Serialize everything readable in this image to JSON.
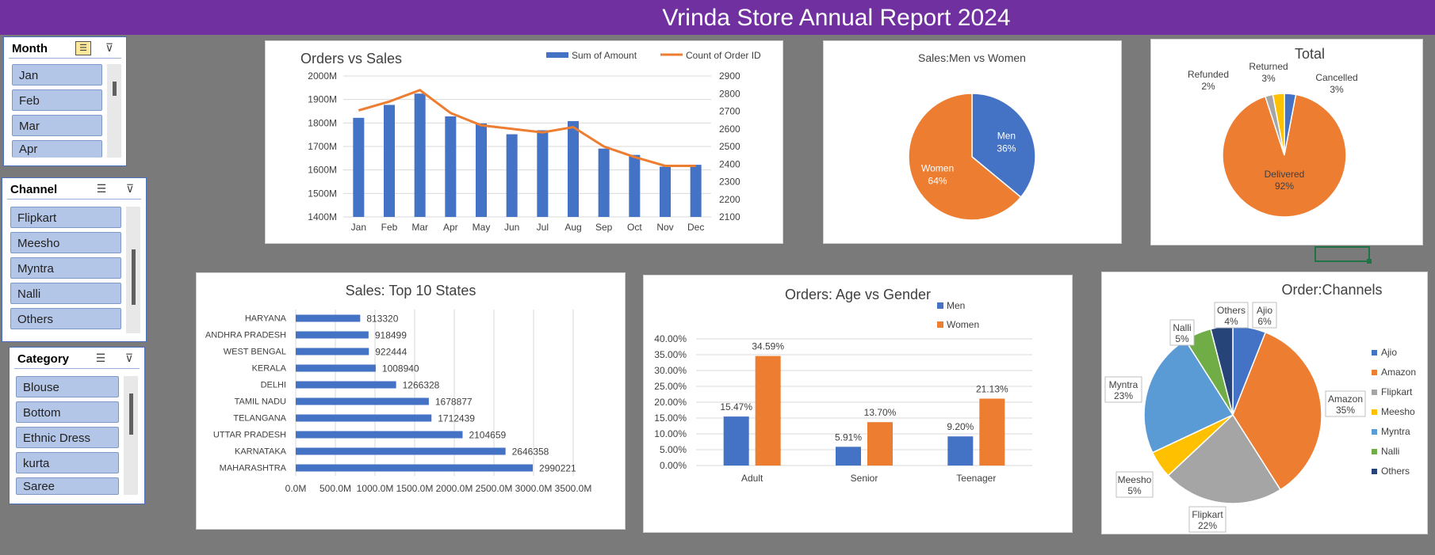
{
  "header": {
    "title": "Vrinda Store Annual Report 2024",
    "bg": "#7030a0"
  },
  "colors": {
    "blue": "#4472c4",
    "orange": "#ed7d31",
    "gray": "#a5a5a5",
    "yellow": "#ffc000",
    "lightblue": "#5b9bd5",
    "green": "#70ad47",
    "navy": "#264478"
  },
  "slicers": {
    "month": {
      "title": "Month",
      "items": [
        "Jan",
        "Feb",
        "Mar",
        "Apr"
      ]
    },
    "channel": {
      "title": "Channel",
      "items": [
        "Flipkart",
        "Meesho",
        "Myntra",
        "Nalli",
        "Others"
      ]
    },
    "category": {
      "title": "Category",
      "items": [
        "Blouse",
        "Bottom",
        "Ethnic Dress",
        "kurta",
        "Saree"
      ]
    }
  },
  "chart_data": [
    {
      "id": "orders_vs_sales",
      "type": "bar",
      "title": "Orders vs Sales",
      "categories": [
        "Jan",
        "Feb",
        "Mar",
        "Apr",
        "May",
        "Jun",
        "Jul",
        "Aug",
        "Sep",
        "Oct",
        "Nov",
        "Dec"
      ],
      "series": [
        {
          "name": "Sum of Amount",
          "type": "bar",
          "axis": "left",
          "values": [
            1822,
            1877,
            1925,
            1828,
            1798,
            1752,
            1769,
            1808,
            1691,
            1664,
            1614,
            1622
          ]
        },
        {
          "name": "Count of Order ID",
          "type": "line",
          "axis": "right",
          "values": [
            2705,
            2755,
            2820,
            2690,
            2620,
            2600,
            2580,
            2610,
            2500,
            2440,
            2390,
            2390
          ]
        }
      ],
      "y_left": {
        "ticks": [
          "1400M",
          "1500M",
          "1600M",
          "1700M",
          "1800M",
          "1900M",
          "2000M"
        ],
        "lim": [
          1400,
          2000
        ]
      },
      "y_right": {
        "ticks": [
          "2100",
          "2200",
          "2300",
          "2400",
          "2500",
          "2600",
          "2700",
          "2800",
          "2900"
        ],
        "lim": [
          2100,
          2900
        ]
      },
      "legend": "top-right"
    },
    {
      "id": "men_vs_women",
      "type": "pie",
      "title": "Sales:Men vs Women",
      "slices": [
        {
          "label": "Men",
          "pct": "36%",
          "value": 36,
          "color": "#4472c4"
        },
        {
          "label": "Women",
          "pct": "64%",
          "value": 64,
          "color": "#ed7d31"
        }
      ]
    },
    {
      "id": "total",
      "type": "pie",
      "title": "Total",
      "slices": [
        {
          "label": "Cancelled",
          "pct": "3%",
          "value": 3,
          "color": "#4472c4"
        },
        {
          "label": "Delivered",
          "pct": "92%",
          "value": 92,
          "color": "#ed7d31"
        },
        {
          "label": "Refunded",
          "pct": "2%",
          "value": 2,
          "color": "#a5a5a5"
        },
        {
          "label": "Returned",
          "pct": "3%",
          "value": 3,
          "color": "#ffc000"
        }
      ]
    },
    {
      "id": "top_states",
      "type": "bar",
      "orientation": "horizontal",
      "title": "Sales: Top 10 States",
      "categories": [
        "HARYANA",
        "ANDHRA PRADESH",
        "WEST BENGAL",
        "KERALA",
        "DELHI",
        "TAMIL NADU",
        "TELANGANA",
        "UTTAR PRADESH",
        "KARNATAKA",
        "MAHARASHTRA"
      ],
      "values": [
        813320,
        918499,
        922444,
        1008940,
        1266328,
        1678877,
        1712439,
        2104659,
        2646358,
        2990221
      ],
      "x_ticks": [
        "0.0M",
        "500.0M",
        "1000.0M",
        "1500.0M",
        "2000.0M",
        "2500.0M",
        "3000.0M",
        "3500.0M"
      ],
      "xlim": [
        0,
        3500000
      ]
    },
    {
      "id": "age_vs_gender",
      "type": "bar",
      "title": "Orders: Age vs Gender",
      "categories": [
        "Adult",
        "Senior",
        "Teenager"
      ],
      "series": [
        {
          "name": "Men",
          "values": [
            15.47,
            5.91,
            9.2
          ],
          "labels": [
            "15.47%",
            "5.91%",
            "9.20%"
          ]
        },
        {
          "name": "Women",
          "values": [
            34.59,
            13.7,
            21.13
          ],
          "labels": [
            "34.59%",
            "13.70%",
            "21.13%"
          ]
        }
      ],
      "y_ticks": [
        "0.00%",
        "5.00%",
        "10.00%",
        "15.00%",
        "20.00%",
        "25.00%",
        "30.00%",
        "35.00%",
        "40.00%"
      ],
      "ylim": [
        0,
        40
      ],
      "legend": "top-right"
    },
    {
      "id": "channels",
      "type": "pie",
      "title": "Order:Channels",
      "slices": [
        {
          "label": "Ajio",
          "pct": "6%",
          "value": 6,
          "color": "#4472c4"
        },
        {
          "label": "Amazon",
          "pct": "35%",
          "value": 35,
          "color": "#ed7d31"
        },
        {
          "label": "Flipkart",
          "pct": "22%",
          "value": 22,
          "color": "#a5a5a5"
        },
        {
          "label": "Meesho",
          "pct": "5%",
          "value": 5,
          "color": "#ffc000"
        },
        {
          "label": "Myntra",
          "pct": "23%",
          "value": 23,
          "color": "#5b9bd5"
        },
        {
          "label": "Nalli",
          "pct": "5%",
          "value": 5,
          "color": "#70ad47"
        },
        {
          "label": "Others",
          "pct": "4%",
          "value": 4,
          "color": "#264478"
        }
      ],
      "legend": "right"
    }
  ]
}
